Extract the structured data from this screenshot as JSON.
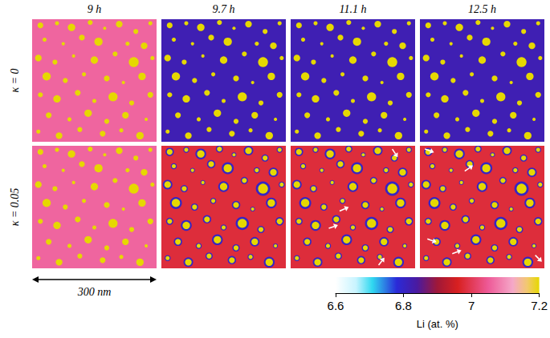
{
  "chart_data": {
    "type": "field_map",
    "columns": [
      "9 h",
      "9.7 h",
      "11.1 h",
      "12.5 h"
    ],
    "rows": [
      "κ = 0",
      "κ = 0.05"
    ],
    "xlim": [
      0,
      300
    ],
    "ylim": [
      0,
      300
    ],
    "tick_labels": false,
    "scale_bar": {
      "label": "300 nm",
      "length": 300
    },
    "particle_li": 7.2,
    "particles": [
      [
        20,
        285,
        7
      ],
      [
        60,
        290,
        5
      ],
      [
        95,
        280,
        9
      ],
      [
        140,
        292,
        6
      ],
      [
        175,
        278,
        4
      ],
      [
        210,
        288,
        8
      ],
      [
        250,
        270,
        6
      ],
      [
        285,
        290,
        5
      ],
      [
        30,
        250,
        5
      ],
      [
        75,
        240,
        4
      ],
      [
        120,
        255,
        7
      ],
      [
        160,
        245,
        10
      ],
      [
        230,
        240,
        5
      ],
      [
        270,
        235,
        8
      ],
      [
        15,
        205,
        8
      ],
      [
        55,
        195,
        6
      ],
      [
        100,
        210,
        4
      ],
      [
        150,
        200,
        9
      ],
      [
        200,
        215,
        6
      ],
      [
        245,
        195,
        12
      ],
      [
        290,
        205,
        5
      ],
      [
        35,
        160,
        10
      ],
      [
        80,
        150,
        6
      ],
      [
        125,
        165,
        5
      ],
      [
        180,
        155,
        7
      ],
      [
        220,
        145,
        4
      ],
      [
        265,
        160,
        9
      ],
      [
        20,
        115,
        6
      ],
      [
        60,
        105,
        9
      ],
      [
        110,
        120,
        7
      ],
      [
        150,
        100,
        5
      ],
      [
        195,
        110,
        11
      ],
      [
        240,
        95,
        6
      ],
      [
        285,
        115,
        7
      ],
      [
        40,
        65,
        7
      ],
      [
        90,
        55,
        5
      ],
      [
        135,
        70,
        9
      ],
      [
        180,
        50,
        6
      ],
      [
        225,
        65,
        8
      ],
      [
        275,
        55,
        4
      ],
      [
        15,
        25,
        5
      ],
      [
        65,
        15,
        8
      ],
      [
        115,
        30,
        6
      ],
      [
        170,
        20,
        7
      ],
      [
        215,
        28,
        5
      ],
      [
        260,
        15,
        9
      ]
    ],
    "panels": [
      [
        {
          "matrix_li": 7.06,
          "halo_li": null,
          "arrows": []
        },
        {
          "matrix_li": 6.82,
          "halo_li": null,
          "arrows": []
        },
        {
          "matrix_li": 6.82,
          "halo_li": null,
          "arrows": []
        },
        {
          "matrix_li": 6.82,
          "halo_li": null,
          "arrows": []
        }
      ],
      [
        {
          "matrix_li": 7.06,
          "halo_li": null,
          "arrows": []
        },
        {
          "matrix_li": 6.98,
          "halo_li": 6.8,
          "arrows": []
        },
        {
          "matrix_li": 6.98,
          "halo_li": 6.8,
          "arrows": [
            [
              118,
              140,
              140,
              150
            ],
            [
              245,
              292,
              258,
              272
            ],
            [
              92,
              98,
              114,
              106
            ],
            [
              212,
              8,
              226,
              26
            ]
          ]
        },
        {
          "matrix_li": 6.98,
          "halo_li": 6.8,
          "arrows": [
            [
              12,
              292,
              34,
              284
            ],
            [
              108,
              238,
              128,
              252
            ],
            [
              18,
              72,
              40,
              64
            ],
            [
              78,
              36,
              100,
              44
            ],
            [
              278,
              32,
              294,
              16
            ]
          ]
        }
      ]
    ],
    "colorbar": {
      "range": [
        6.6,
        7.2
      ],
      "ticks": [
        6.6,
        6.8,
        7,
        7.2
      ],
      "label": "Li (at. %)"
    }
  }
}
